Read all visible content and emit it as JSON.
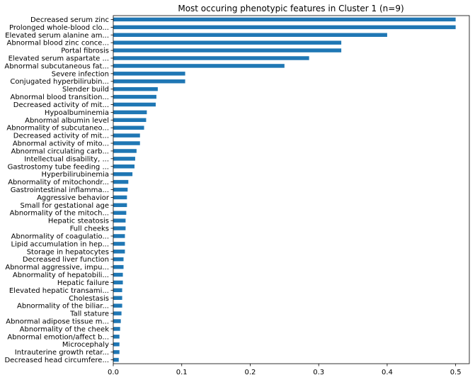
{
  "chart_data": {
    "type": "bar",
    "orientation": "horizontal",
    "title": "Most occuring phenotypic features in Cluster 1 (n=9)",
    "xlabel": "",
    "ylabel": "",
    "xlim": [
      0,
      0.52
    ],
    "x_ticks": [
      0.0,
      0.1,
      0.2,
      0.3,
      0.4,
      0.5
    ],
    "x_tick_labels": [
      "0.0",
      "0.1",
      "0.2",
      "0.3",
      "0.4",
      "0.5"
    ],
    "grid": false,
    "bar_color": "#1f77b4",
    "categories": [
      "Decreased serum zinc",
      "Prolonged whole-blood clo...",
      "Elevated serum alanine am...",
      "Abnormal blood zinc conce...",
      "Portal fibrosis",
      "Elevated serum aspartate ...",
      "Abnormal subcutaneous fat...",
      "Severe infection",
      "Conjugated hyperbilirubin...",
      "Slender build",
      "Abnormal blood transition...",
      "Decreased activity of mit...",
      "Hypoalbuminemia",
      "Abnormal albumin level",
      "Abnormality of subcutaneo...",
      "Decreased activity of mit...",
      "Abnormal activity of mito...",
      "Abnormal circulating carb...",
      "Intellectual disability, ...",
      "Gastrostomy tube feeding ...",
      "Hyperbilirubinemia",
      "Abnormality of mitochondr...",
      "Gastrointestinal inflamma...",
      "Aggressive behavior",
      "Small for gestational age",
      "Abnormality of the mitoch...",
      "Hepatic steatosis",
      "Full cheeks",
      "Abnormality of coagulatio...",
      "Lipid accumulation in hep...",
      "Storage in hepatocytes",
      "Decreased liver function",
      "Abnormal aggressive, impu...",
      "Abnormality of hepatobili...",
      "Hepatic failure",
      "Elevated hepatic transami...",
      "Cholestasis",
      "Abnormality of the biliar...",
      "Tall stature",
      "Abnormal adipose tissue m...",
      "Abnormality of the cheek",
      "Abnormal emotion/affect b...",
      "Microcephaly",
      "Intrauterine growth retar...",
      "Decreased head circumfere..."
    ],
    "values": [
      0.5,
      0.5,
      0.4,
      0.333,
      0.333,
      0.286,
      0.25,
      0.105,
      0.105,
      0.065,
      0.063,
      0.062,
      0.049,
      0.048,
      0.045,
      0.039,
      0.039,
      0.034,
      0.032,
      0.031,
      0.028,
      0.022,
      0.021,
      0.02,
      0.02,
      0.019,
      0.018,
      0.018,
      0.017,
      0.017,
      0.017,
      0.015,
      0.015,
      0.014,
      0.014,
      0.013,
      0.013,
      0.013,
      0.012,
      0.011,
      0.01,
      0.009,
      0.009,
      0.009,
      0.008
    ]
  }
}
